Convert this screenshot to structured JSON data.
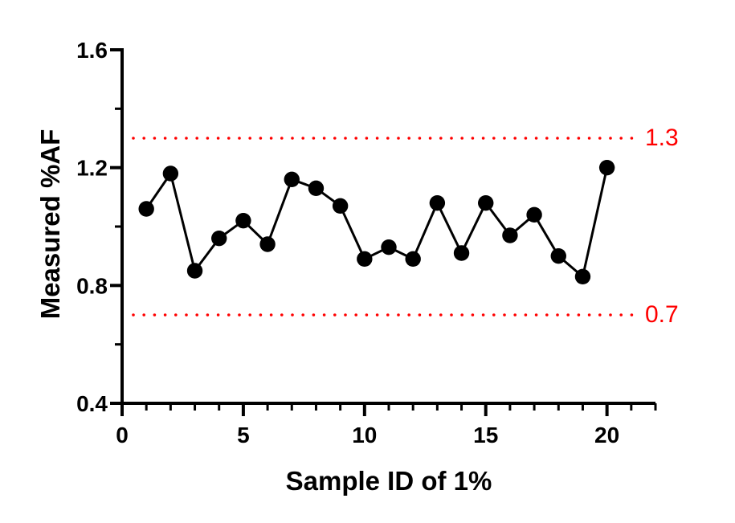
{
  "figure": {
    "background": "#FFFFFF",
    "series_color": "#000000",
    "accent_color": "#FF0000"
  },
  "chart_data": {
    "type": "line",
    "title": "",
    "xlabel": "Sample ID of 1%",
    "ylabel": "Measured %AF",
    "x": [
      1,
      2,
      3,
      4,
      5,
      6,
      7,
      8,
      9,
      10,
      11,
      12,
      13,
      14,
      15,
      16,
      17,
      18,
      19,
      20
    ],
    "values": [
      1.06,
      1.18,
      0.85,
      0.96,
      1.02,
      0.94,
      1.16,
      1.13,
      1.07,
      0.89,
      0.93,
      0.89,
      1.08,
      0.91,
      1.08,
      0.97,
      1.04,
      0.9,
      0.83,
      1.2
    ],
    "xlim": [
      0,
      22
    ],
    "ylim": [
      0.4,
      1.6
    ],
    "x_major_ticks": {
      "values": [
        0,
        5,
        10,
        15,
        20
      ],
      "labels": [
        "0",
        "5",
        "10",
        "15",
        "20"
      ]
    },
    "x_minor_tick_step": 1,
    "y_major_ticks": {
      "values": [
        0.4,
        0.8,
        1.2,
        1.6
      ],
      "labels": [
        "0.4",
        "0.8",
        "1.2",
        "1.6"
      ]
    },
    "y_minor_ticks": [
      0.6,
      1.0,
      1.4
    ],
    "grid": false,
    "legend": null,
    "marker": "circle",
    "series_color": "#000000",
    "reference_lines": [
      {
        "value": 1.3,
        "label": "1.3",
        "color": "#FF0000",
        "style": "dotted"
      },
      {
        "value": 0.7,
        "label": "0.7",
        "color": "#FF0000",
        "style": "dotted"
      }
    ]
  }
}
